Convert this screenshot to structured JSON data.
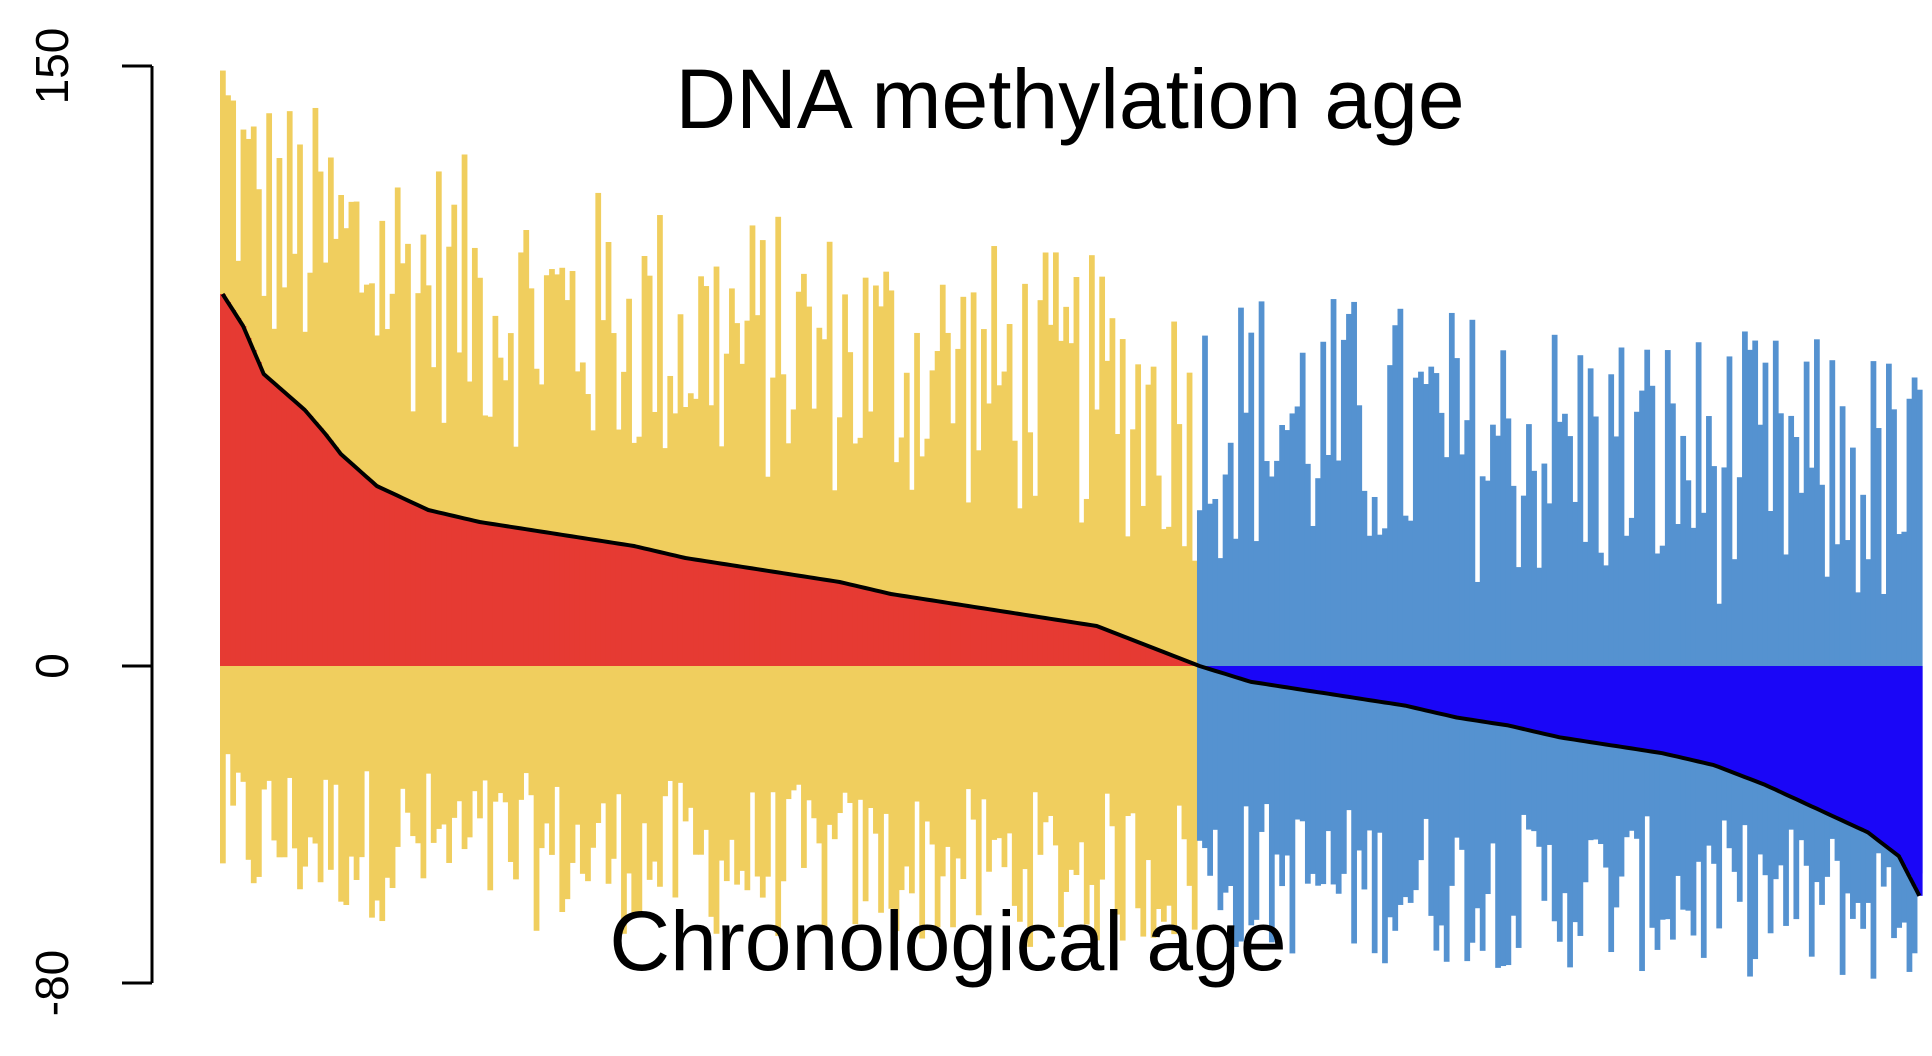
{
  "chart_data": {
    "type": "bar",
    "title": "DNA methylation age",
    "bottom_label": "Chronological age",
    "ylim": [
      -80,
      150
    ],
    "yticks": [
      150,
      0,
      -80
    ],
    "grid": false,
    "legend": "none",
    "n_samples": 331,
    "split_index": 190,
    "colors": {
      "positive_group": "#F0CE5E",
      "negative_group": "#5592D0",
      "accel_positive": "#E63A33",
      "accel_negative": "#1A06F7",
      "line": "#000000"
    },
    "series": [
      {
        "name": "",
        "kind": "difference",
        "description_keys": [
          "x",
          "y"
        ],
        "points": [
          [
            0,
            93
          ],
          [
            4,
            85
          ],
          [
            8,
            73
          ],
          [
            16,
            64
          ],
          [
            20,
            58
          ],
          [
            23,
            53
          ],
          [
            30,
            45
          ],
          [
            40,
            39
          ],
          [
            50,
            36
          ],
          [
            60,
            34
          ],
          [
            70,
            32
          ],
          [
            80,
            30
          ],
          [
            90,
            27
          ],
          [
            100,
            25
          ],
          [
            110,
            23
          ],
          [
            120,
            21
          ],
          [
            130,
            18
          ],
          [
            140,
            16
          ],
          [
            150,
            14
          ],
          [
            160,
            12
          ],
          [
            170,
            10
          ],
          [
            180,
            5
          ],
          [
            190,
            0
          ],
          [
            200,
            -4
          ],
          [
            210,
            -6
          ],
          [
            220,
            -8
          ],
          [
            230,
            -10
          ],
          [
            240,
            -13
          ],
          [
            250,
            -15
          ],
          [
            260,
            -18
          ],
          [
            270,
            -20
          ],
          [
            280,
            -22
          ],
          [
            290,
            -25
          ],
          [
            300,
            -30
          ],
          [
            310,
            -36
          ],
          [
            320,
            -42
          ],
          [
            326,
            -48
          ],
          [
            330,
            -58
          ]
        ]
      },
      {
        "name": "",
        "kind": "methylation_age_top",
        "description_keys": [
          "x",
          "y"
        ],
        "points": [
          [
            0,
            138
          ],
          [
            5,
            115
          ],
          [
            15,
            108
          ],
          [
            30,
            100
          ],
          [
            60,
            88
          ],
          [
            90,
            82
          ],
          [
            120,
            77
          ],
          [
            150,
            72
          ],
          [
            170,
            68
          ],
          [
            190,
            60
          ],
          [
            200,
            62
          ],
          [
            230,
            57
          ],
          [
            260,
            54
          ],
          [
            290,
            50
          ],
          [
            320,
            47
          ],
          [
            330,
            42
          ]
        ]
      },
      {
        "name": "",
        "kind": "chronological_age_bottom",
        "description_keys": [
          "x",
          "y"
        ],
        "points": [
          [
            0,
            -42
          ],
          [
            60,
            -47
          ],
          [
            120,
            -50
          ],
          [
            190,
            -52
          ],
          [
            220,
            -55
          ],
          [
            260,
            -57
          ],
          [
            300,
            -59
          ],
          [
            330,
            -62
          ]
        ]
      }
    ]
  }
}
